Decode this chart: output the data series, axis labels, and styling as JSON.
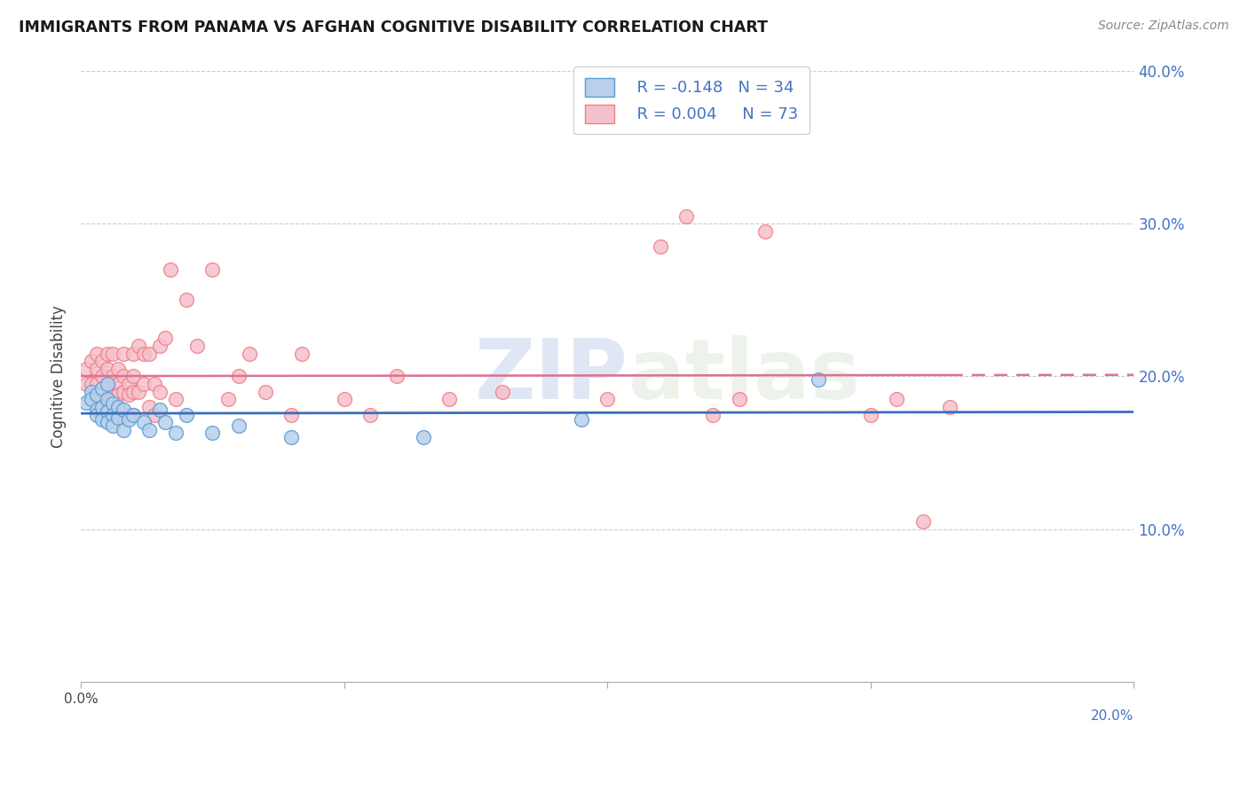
{
  "title": "IMMIGRANTS FROM PANAMA VS AFGHAN COGNITIVE DISABILITY CORRELATION CHART",
  "source": "Source: ZipAtlas.com",
  "ylabel": "Cognitive Disability",
  "watermark_zip": "ZIP",
  "watermark_atlas": "atlas",
  "legend_r_panama": "R = -0.148",
  "legend_n_panama": "N = 34",
  "legend_r_afghan": "R = 0.004",
  "legend_n_afghan": "N = 73",
  "xlim": [
    0.0,
    0.2
  ],
  "ylim": [
    0.0,
    0.4
  ],
  "yticks": [
    0.1,
    0.2,
    0.3,
    0.4
  ],
  "ytick_labels": [
    "10.0%",
    "20.0%",
    "30.0%",
    "40.0%"
  ],
  "color_panama_fill": "#b8d0ea",
  "color_afghan_fill": "#f5c0ce",
  "color_panama_edge": "#5b9bd5",
  "color_afghan_edge": "#f08080",
  "color_line_panama": "#3a6fba",
  "color_line_afghan": "#e07090",
  "panama_x": [
    0.001,
    0.002,
    0.002,
    0.003,
    0.003,
    0.003,
    0.004,
    0.004,
    0.004,
    0.005,
    0.005,
    0.005,
    0.005,
    0.006,
    0.006,
    0.006,
    0.007,
    0.007,
    0.008,
    0.008,
    0.009,
    0.01,
    0.012,
    0.013,
    0.015,
    0.016,
    0.018,
    0.02,
    0.025,
    0.03,
    0.04,
    0.065,
    0.095,
    0.14
  ],
  "panama_y": [
    0.183,
    0.19,
    0.185,
    0.178,
    0.188,
    0.175,
    0.192,
    0.18,
    0.172,
    0.185,
    0.177,
    0.195,
    0.17,
    0.182,
    0.175,
    0.168,
    0.18,
    0.173,
    0.178,
    0.165,
    0.172,
    0.175,
    0.17,
    0.165,
    0.178,
    0.17,
    0.163,
    0.175,
    0.163,
    0.168,
    0.16,
    0.16,
    0.172,
    0.198
  ],
  "afghan_x": [
    0.001,
    0.001,
    0.002,
    0.002,
    0.002,
    0.003,
    0.003,
    0.003,
    0.003,
    0.004,
    0.004,
    0.004,
    0.004,
    0.005,
    0.005,
    0.005,
    0.005,
    0.005,
    0.006,
    0.006,
    0.006,
    0.006,
    0.007,
    0.007,
    0.007,
    0.007,
    0.008,
    0.008,
    0.008,
    0.009,
    0.009,
    0.009,
    0.01,
    0.01,
    0.01,
    0.01,
    0.011,
    0.011,
    0.012,
    0.012,
    0.013,
    0.013,
    0.014,
    0.014,
    0.015,
    0.015,
    0.016,
    0.017,
    0.018,
    0.02,
    0.022,
    0.025,
    0.028,
    0.03,
    0.032,
    0.035,
    0.04,
    0.042,
    0.05,
    0.055,
    0.06,
    0.07,
    0.08,
    0.1,
    0.11,
    0.115,
    0.12,
    0.125,
    0.13,
    0.15,
    0.155,
    0.16,
    0.165
  ],
  "afghan_y": [
    0.195,
    0.205,
    0.21,
    0.195,
    0.185,
    0.205,
    0.215,
    0.195,
    0.182,
    0.2,
    0.188,
    0.178,
    0.21,
    0.205,
    0.192,
    0.185,
    0.175,
    0.215,
    0.2,
    0.188,
    0.215,
    0.178,
    0.195,
    0.205,
    0.188,
    0.175,
    0.2,
    0.19,
    0.215,
    0.195,
    0.188,
    0.175,
    0.2,
    0.19,
    0.215,
    0.175,
    0.22,
    0.19,
    0.215,
    0.195,
    0.215,
    0.18,
    0.195,
    0.175,
    0.22,
    0.19,
    0.225,
    0.27,
    0.185,
    0.25,
    0.22,
    0.27,
    0.185,
    0.2,
    0.215,
    0.19,
    0.175,
    0.215,
    0.185,
    0.175,
    0.2,
    0.185,
    0.19,
    0.185,
    0.285,
    0.305,
    0.175,
    0.185,
    0.295,
    0.175,
    0.185,
    0.105,
    0.18
  ]
}
